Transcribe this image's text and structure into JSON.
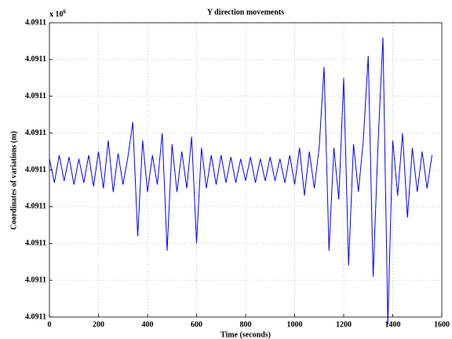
{
  "chart_data": {
    "type": "line",
    "title": "Y direction movements",
    "xlabel": "Time (seconds)",
    "ylabel": "Coordinates of variations (m)",
    "y_multiplier_base": "x 10",
    "y_multiplier_exponent": "6",
    "xlim": [
      0,
      1600
    ],
    "xticks": [
      0,
      200,
      400,
      600,
      800,
      1000,
      1200,
      1400,
      1600
    ],
    "ylim": [
      4.09106,
      4.09114
    ],
    "yticks": [
      {
        "value": 4.09106,
        "label": "4.0911"
      },
      {
        "value": 4.09107,
        "label": "4.0911"
      },
      {
        "value": 4.09108,
        "label": "4.0911"
      },
      {
        "value": 4.09109,
        "label": "4.0911"
      },
      {
        "value": 4.0911,
        "label": "4.0911"
      },
      {
        "value": 4.09111,
        "label": "4.0911"
      },
      {
        "value": 4.09112,
        "label": "4.0911"
      },
      {
        "value": 4.09113,
        "label": "4.0911"
      },
      {
        "value": 4.09114,
        "label": "4.0911"
      }
    ],
    "grid": true,
    "x": [
      0,
      20,
      40,
      60,
      80,
      100,
      120,
      140,
      160,
      180,
      200,
      220,
      240,
      260,
      280,
      300,
      320,
      340,
      360,
      380,
      400,
      420,
      440,
      460,
      480,
      500,
      520,
      540,
      560,
      580,
      600,
      620,
      640,
      660,
      680,
      700,
      720,
      740,
      760,
      780,
      800,
      820,
      840,
      860,
      880,
      900,
      920,
      940,
      960,
      980,
      1000,
      1020,
      1040,
      1060,
      1080,
      1100,
      1120,
      1140,
      1160,
      1180,
      1200,
      1220,
      1240,
      1260,
      1280,
      1300,
      1320,
      1340,
      1360,
      1380,
      1400,
      1420,
      1440,
      1460,
      1480,
      1500,
      1520,
      1540,
      1560
    ],
    "series": [
      {
        "color": "#0000ff",
        "values": [
          4.091103,
          4.0910965,
          4.091104,
          4.091097,
          4.0911035,
          4.091096,
          4.091103,
          4.0910965,
          4.091104,
          4.0910955,
          4.091105,
          4.091095,
          4.091108,
          4.091094,
          4.0911045,
          4.091096,
          4.0911035,
          4.091113,
          4.091082,
          4.091108,
          4.091094,
          4.091104,
          4.091096,
          4.09111,
          4.091078,
          4.091107,
          4.091094,
          4.091105,
          4.091095,
          4.091109,
          4.09108,
          4.091106,
          4.091095,
          4.091104,
          4.091096,
          4.091104,
          4.0910965,
          4.0911035,
          4.0910965,
          4.091103,
          4.091097,
          4.0911035,
          4.0910965,
          4.091103,
          4.091097,
          4.0911035,
          4.091097,
          4.091103,
          4.0910965,
          4.091104,
          4.091096,
          4.091106,
          4.091093,
          4.091105,
          4.091095,
          4.091106,
          4.091128,
          4.091078,
          4.091106,
          4.091092,
          4.091125,
          4.091074,
          4.091107,
          4.091094,
          4.091108,
          4.091131,
          4.091071,
          4.091107,
          4.091136,
          4.091058,
          4.091108,
          4.091093,
          4.09111,
          4.091087,
          4.091106,
          4.091094,
          4.091105,
          4.091095,
          4.091104
        ]
      }
    ]
  }
}
